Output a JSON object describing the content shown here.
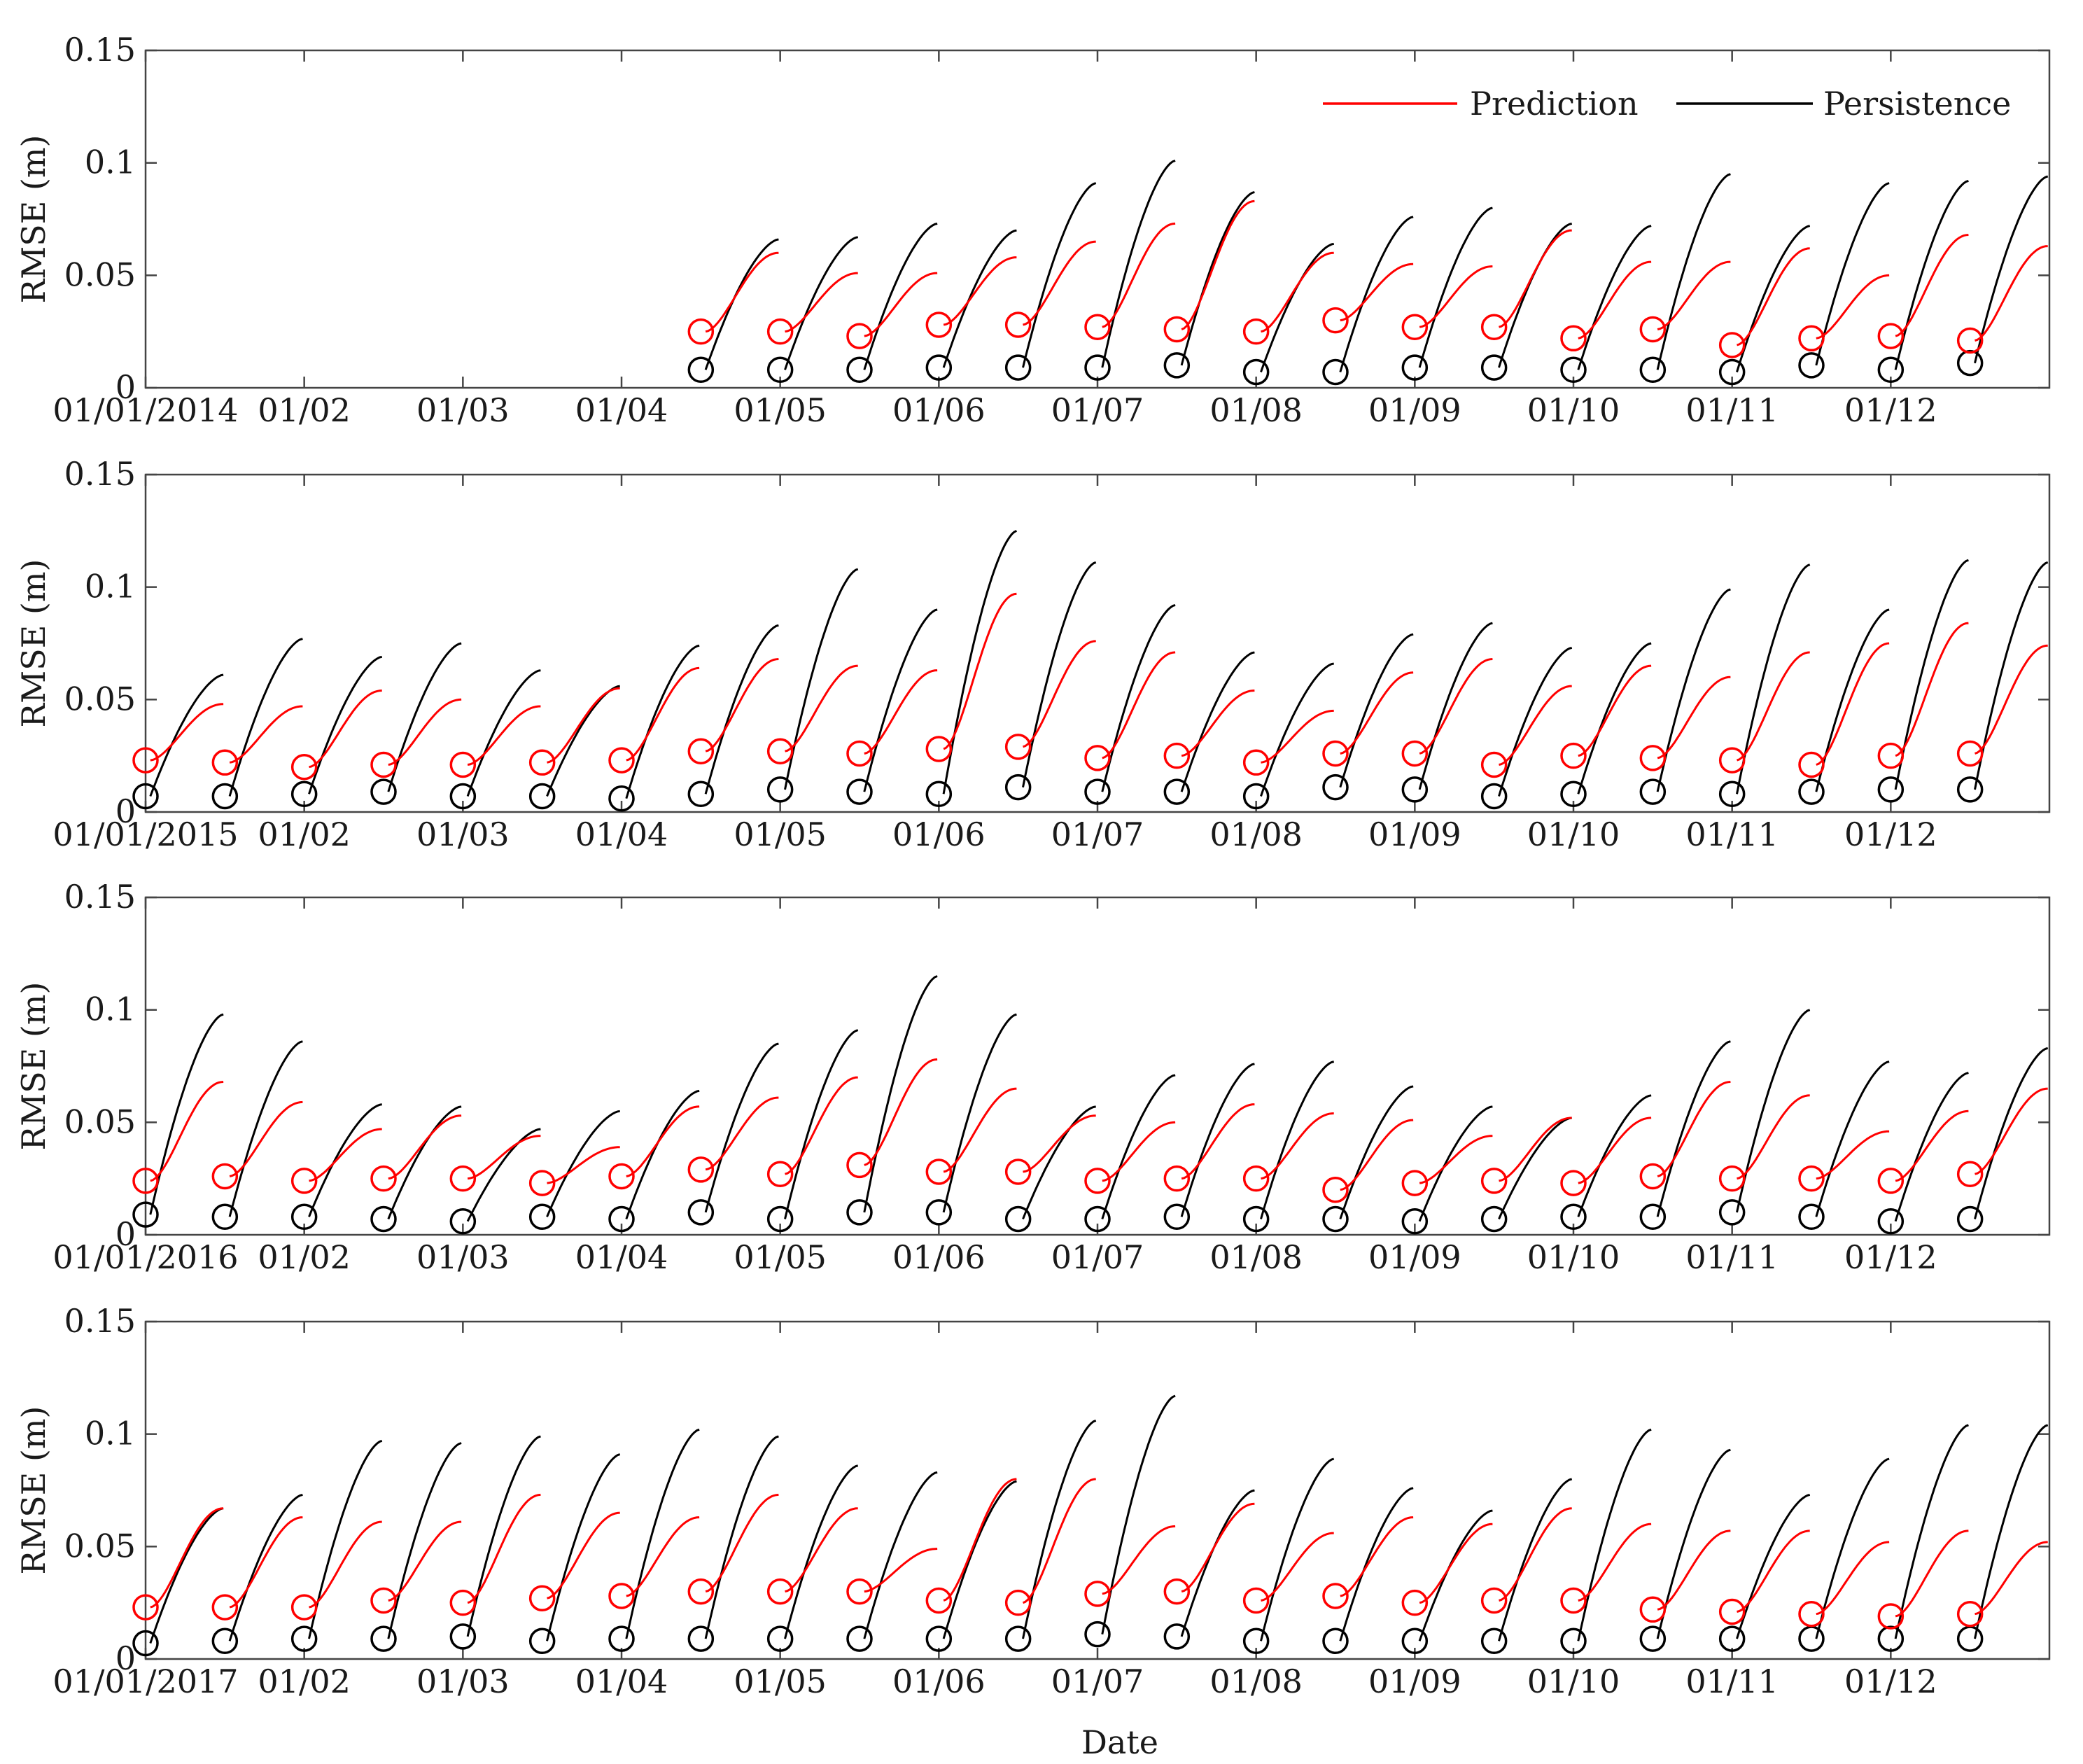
{
  "figure": {
    "xlabel": "Date",
    "legend": [
      "Prediction",
      "Persistence"
    ],
    "colors": {
      "prediction": "#ff0000",
      "persistence": "#000000",
      "axis": "#444444"
    }
  },
  "chart_data": [
    {
      "type": "line",
      "year": 2014,
      "ylabel": "RMSE (m)",
      "ylim": [
        0,
        0.15
      ],
      "yticks": [
        0,
        0.05,
        0.1,
        0.15
      ],
      "ytick_labels": [
        "0",
        "0.05",
        "0.1",
        "0.15"
      ],
      "xlim": [
        0,
        12
      ],
      "xtick_positions": [
        0,
        1,
        2,
        3,
        4,
        5,
        6,
        7,
        8,
        9,
        10,
        11
      ],
      "xtick_labels": [
        "01/01/2014",
        "01/02",
        "01/03",
        "01/04",
        "01/05",
        "01/06",
        "01/07",
        "01/08",
        "01/09",
        "01/10",
        "01/11",
        "01/12"
      ],
      "legend_location": "top-right",
      "forecast_start_month": [
        3.5,
        4.0,
        4.5,
        5.0,
        5.5,
        6.0,
        6.5,
        7.0,
        7.5,
        8.0,
        8.5,
        9.0,
        9.5,
        10.0,
        10.5,
        11.0,
        11.5
      ],
      "prediction_start": [
        0.025,
        0.025,
        0.023,
        0.028,
        0.028,
        0.027,
        0.026,
        0.025,
        0.03,
        0.027,
        0.027,
        0.022,
        0.026,
        0.019,
        0.022,
        0.023,
        0.021
      ],
      "prediction_end": [
        0.06,
        0.051,
        0.051,
        0.058,
        0.065,
        0.073,
        0.083,
        0.06,
        0.055,
        0.054,
        0.07,
        0.056,
        0.056,
        0.062,
        0.05,
        0.068,
        0.063
      ],
      "persistence_start": [
        0.008,
        0.008,
        0.008,
        0.009,
        0.009,
        0.009,
        0.01,
        0.007,
        0.007,
        0.009,
        0.009,
        0.008,
        0.008,
        0.007,
        0.01,
        0.008,
        0.011
      ],
      "persistence_end": [
        0.066,
        0.067,
        0.073,
        0.07,
        0.091,
        0.101,
        0.087,
        0.064,
        0.076,
        0.08,
        0.073,
        0.072,
        0.095,
        0.072,
        0.091,
        0.092,
        0.094
      ]
    },
    {
      "type": "line",
      "year": 2015,
      "ylabel": "RMSE (m)",
      "ylim": [
        0,
        0.15
      ],
      "yticks": [
        0,
        0.05,
        0.1,
        0.15
      ],
      "ytick_labels": [
        "0",
        "0.05",
        "0.1",
        "0.15"
      ],
      "xlim": [
        0,
        12
      ],
      "xtick_positions": [
        0,
        1,
        2,
        3,
        4,
        5,
        6,
        7,
        8,
        9,
        10,
        11
      ],
      "xtick_labels": [
        "01/01/2015",
        "01/02",
        "01/03",
        "01/04",
        "01/05",
        "01/06",
        "01/07",
        "01/08",
        "01/09",
        "01/10",
        "01/11",
        "01/12"
      ],
      "forecast_start_month": [
        0.0,
        0.5,
        1.0,
        1.5,
        2.0,
        2.5,
        3.0,
        3.5,
        4.0,
        4.5,
        5.0,
        5.5,
        6.0,
        6.5,
        7.0,
        7.5,
        8.0,
        8.5,
        9.0,
        9.5,
        10.0,
        10.5,
        11.0,
        11.5
      ],
      "prediction_start": [
        0.023,
        0.022,
        0.02,
        0.021,
        0.021,
        0.022,
        0.023,
        0.027,
        0.027,
        0.026,
        0.028,
        0.029,
        0.024,
        0.025,
        0.022,
        0.026,
        0.026,
        0.021,
        0.025,
        0.024,
        0.023,
        0.021,
        0.025,
        0.026
      ],
      "prediction_end": [
        0.048,
        0.047,
        0.054,
        0.05,
        0.047,
        0.055,
        0.064,
        0.068,
        0.065,
        0.063,
        0.097,
        0.076,
        0.071,
        0.054,
        0.045,
        0.062,
        0.068,
        0.056,
        0.065,
        0.06,
        0.071,
        0.075,
        0.084,
        0.074
      ],
      "persistence_start": [
        0.007,
        0.007,
        0.008,
        0.009,
        0.007,
        0.007,
        0.006,
        0.008,
        0.01,
        0.009,
        0.008,
        0.011,
        0.009,
        0.009,
        0.007,
        0.011,
        0.01,
        0.007,
        0.008,
        0.009,
        0.008,
        0.009,
        0.01,
        0.01
      ],
      "persistence_end": [
        0.061,
        0.077,
        0.069,
        0.075,
        0.063,
        0.056,
        0.074,
        0.083,
        0.108,
        0.09,
        0.125,
        0.111,
        0.092,
        0.071,
        0.066,
        0.079,
        0.084,
        0.073,
        0.075,
        0.099,
        0.11,
        0.09,
        0.112,
        0.111
      ]
    },
    {
      "type": "line",
      "year": 2016,
      "ylabel": "RMSE (m)",
      "ylim": [
        0,
        0.15
      ],
      "yticks": [
        0,
        0.05,
        0.1,
        0.15
      ],
      "ytick_labels": [
        "0",
        "0.05",
        "0.1",
        "0.15"
      ],
      "xlim": [
        0,
        12
      ],
      "xtick_positions": [
        0,
        1,
        2,
        3,
        4,
        5,
        6,
        7,
        8,
        9,
        10,
        11
      ],
      "xtick_labels": [
        "01/01/2016",
        "01/02",
        "01/03",
        "01/04",
        "01/05",
        "01/06",
        "01/07",
        "01/08",
        "01/09",
        "01/10",
        "01/11",
        "01/12"
      ],
      "forecast_start_month": [
        0.0,
        0.5,
        1.0,
        1.5,
        2.0,
        2.5,
        3.0,
        3.5,
        4.0,
        4.5,
        5.0,
        5.5,
        6.0,
        6.5,
        7.0,
        7.5,
        8.0,
        8.5,
        9.0,
        9.5,
        10.0,
        10.5,
        11.0,
        11.5
      ],
      "prediction_start": [
        0.024,
        0.026,
        0.024,
        0.025,
        0.025,
        0.023,
        0.026,
        0.029,
        0.027,
        0.031,
        0.028,
        0.028,
        0.024,
        0.025,
        0.025,
        0.02,
        0.023,
        0.024,
        0.023,
        0.026,
        0.025,
        0.025,
        0.024,
        0.027
      ],
      "prediction_end": [
        0.068,
        0.059,
        0.047,
        0.053,
        0.044,
        0.039,
        0.057,
        0.061,
        0.07,
        0.078,
        0.065,
        0.053,
        0.05,
        0.058,
        0.054,
        0.051,
        0.044,
        0.052,
        0.052,
        0.068,
        0.062,
        0.046,
        0.055,
        0.065
      ],
      "persistence_start": [
        0.009,
        0.008,
        0.008,
        0.007,
        0.006,
        0.008,
        0.007,
        0.01,
        0.007,
        0.01,
        0.01,
        0.007,
        0.007,
        0.008,
        0.007,
        0.007,
        0.006,
        0.007,
        0.008,
        0.008,
        0.01,
        0.008,
        0.006,
        0.007
      ],
      "persistence_end": [
        0.098,
        0.086,
        0.058,
        0.057,
        0.047,
        0.055,
        0.064,
        0.085,
        0.091,
        0.115,
        0.098,
        0.057,
        0.071,
        0.076,
        0.077,
        0.066,
        0.057,
        0.052,
        0.062,
        0.086,
        0.1,
        0.077,
        0.072,
        0.083
      ]
    },
    {
      "type": "line",
      "year": 2017,
      "ylabel": "RMSE (m)",
      "ylim": [
        0,
        0.15
      ],
      "yticks": [
        0,
        0.05,
        0.1,
        0.15
      ],
      "ytick_labels": [
        "0",
        "0.05",
        "0.1",
        "0.15"
      ],
      "xlim": [
        0,
        12
      ],
      "xtick_positions": [
        0,
        1,
        2,
        3,
        4,
        5,
        6,
        7,
        8,
        9,
        10,
        11
      ],
      "xtick_labels": [
        "01/01/2017",
        "01/02",
        "01/03",
        "01/04",
        "01/05",
        "01/06",
        "01/07",
        "01/08",
        "01/09",
        "01/10",
        "01/11",
        "01/12"
      ],
      "forecast_start_month": [
        0.0,
        0.5,
        1.0,
        1.5,
        2.0,
        2.5,
        3.0,
        3.5,
        4.0,
        4.5,
        5.0,
        5.5,
        6.0,
        6.5,
        7.0,
        7.5,
        8.0,
        8.5,
        9.0,
        9.5,
        10.0,
        10.5,
        11.0,
        11.5
      ],
      "prediction_start": [
        0.023,
        0.023,
        0.023,
        0.026,
        0.025,
        0.027,
        0.028,
        0.03,
        0.03,
        0.03,
        0.026,
        0.025,
        0.029,
        0.03,
        0.026,
        0.028,
        0.025,
        0.026,
        0.026,
        0.022,
        0.021,
        0.02,
        0.019,
        0.02
      ],
      "prediction_end": [
        0.067,
        0.063,
        0.061,
        0.061,
        0.073,
        0.065,
        0.063,
        0.073,
        0.067,
        0.049,
        0.08,
        0.08,
        0.059,
        0.069,
        0.056,
        0.063,
        0.06,
        0.067,
        0.06,
        0.057,
        0.057,
        0.052,
        0.057,
        0.052
      ],
      "persistence_start": [
        0.007,
        0.008,
        0.009,
        0.009,
        0.01,
        0.008,
        0.009,
        0.009,
        0.009,
        0.009,
        0.009,
        0.009,
        0.011,
        0.01,
        0.008,
        0.008,
        0.008,
        0.008,
        0.008,
        0.009,
        0.009,
        0.009,
        0.009,
        0.009
      ],
      "persistence_end": [
        0.067,
        0.073,
        0.097,
        0.096,
        0.099,
        0.091,
        0.102,
        0.099,
        0.086,
        0.083,
        0.079,
        0.106,
        0.117,
        0.075,
        0.089,
        0.076,
        0.066,
        0.08,
        0.102,
        0.093,
        0.073,
        0.089,
        0.104,
        0.104
      ]
    }
  ]
}
